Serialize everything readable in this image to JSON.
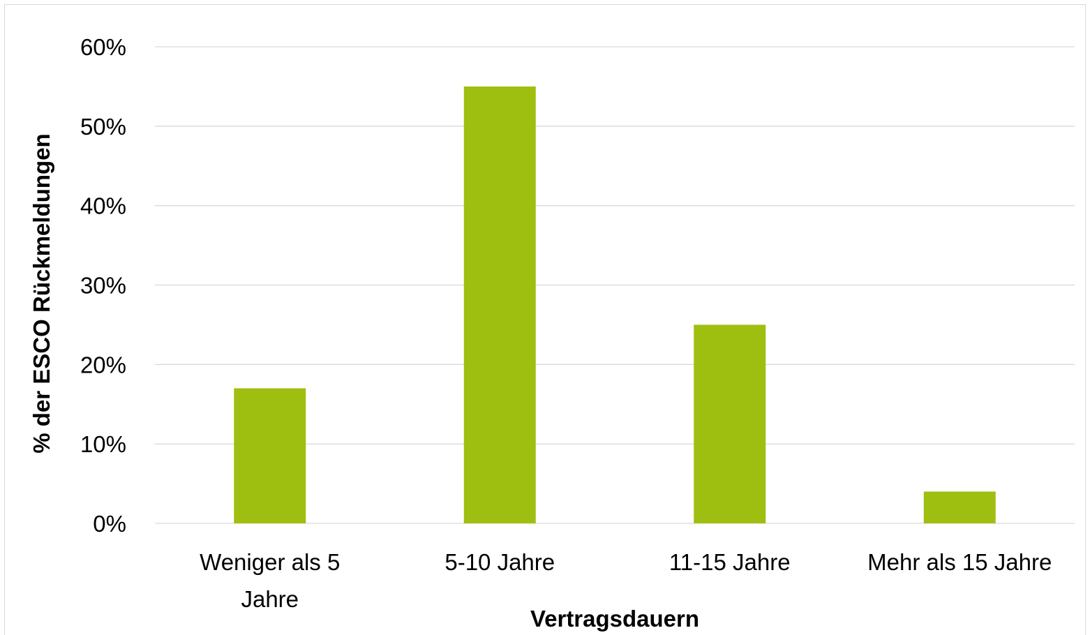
{
  "chart_data": {
    "type": "bar",
    "categories": [
      [
        "Weniger als 5",
        "Jahre"
      ],
      [
        "5-10 Jahre"
      ],
      [
        "11-15 Jahre"
      ],
      [
        "Mehr als 15 Jahre"
      ]
    ],
    "values": [
      17,
      55,
      25,
      4
    ],
    "title": "",
    "xlabel": "Vertragsdauern",
    "ylabel": "% der ESCO Rückmeldungen",
    "ylim": [
      0,
      60
    ],
    "yticks": [
      0,
      10,
      20,
      30,
      40,
      50,
      60
    ],
    "ytick_suffix": "%",
    "grid": true,
    "legend": "none",
    "bar_color": "#9fbf10",
    "grid_color": "#d9d9d9"
  }
}
